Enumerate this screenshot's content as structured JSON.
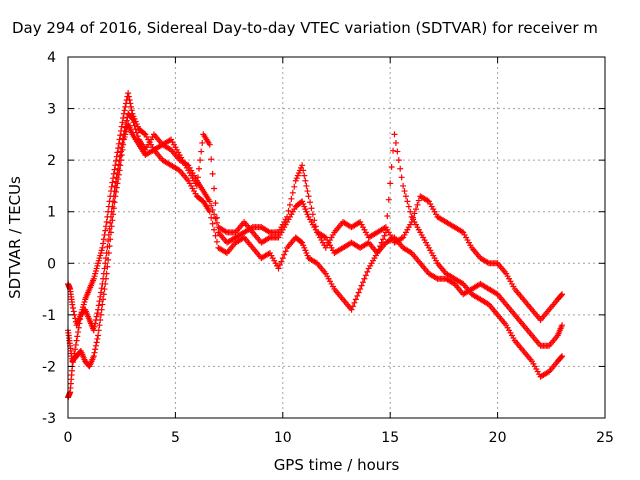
{
  "chart_data": {
    "type": "scatter",
    "title": "Day 294 of 2016, Sidereal Day-to-day VTEC variation (SDTVAR) for receiver m",
    "xlabel": "GPS time / hours",
    "ylabel": "SDTVAR / TECUs",
    "xlim": [
      0,
      25
    ],
    "ylim": [
      -3,
      4
    ],
    "xticks": [
      "0",
      "5",
      "10",
      "15",
      "20",
      "25"
    ],
    "yticks": [
      "-3",
      "-2",
      "-1",
      "0",
      "1",
      "2",
      "3",
      "4"
    ],
    "grid": true,
    "marker": "+",
    "series": [
      {
        "color": "#ff0000",
        "x": [
          0.0,
          0.1,
          0.2,
          0.4,
          0.6,
          0.8,
          1.0,
          1.2,
          1.4,
          1.6,
          1.8,
          2.0,
          2.2,
          2.4,
          2.6,
          2.8,
          3.0,
          3.3,
          3.6,
          4.0,
          4.4,
          4.8,
          5.2,
          5.6,
          6.0,
          6.3,
          6.6,
          7.0,
          7.4,
          7.8,
          8.2,
          8.6,
          9.0,
          9.4,
          9.8,
          10.2,
          10.6,
          10.9,
          11.2,
          11.6,
          12.0,
          12.4,
          12.8,
          13.2,
          13.6,
          14.0,
          14.4,
          14.8,
          15.2,
          15.6,
          16.0,
          16.4,
          16.8,
          17.2,
          17.6,
          18.0,
          18.4,
          18.8,
          19.2,
          19.6,
          20.0,
          20.4,
          20.8,
          21.2,
          21.6,
          22.0,
          22.4,
          22.8,
          23.0
        ],
        "y": [
          -0.4,
          -0.5,
          -0.8,
          -1.2,
          -1.0,
          -0.7,
          -0.5,
          -0.3,
          0.0,
          0.3,
          0.8,
          1.4,
          1.9,
          2.4,
          2.9,
          3.3,
          2.9,
          2.6,
          2.5,
          2.2,
          2.3,
          2.4,
          2.1,
          1.8,
          1.5,
          2.5,
          2.3,
          0.6,
          0.4,
          0.5,
          0.6,
          0.7,
          0.7,
          0.6,
          0.6,
          0.9,
          1.6,
          1.9,
          1.3,
          0.6,
          0.3,
          0.6,
          0.8,
          0.7,
          0.8,
          0.5,
          0.6,
          0.7,
          0.4,
          0.5,
          0.8,
          1.3,
          1.2,
          0.9,
          0.8,
          0.7,
          0.6,
          0.3,
          0.1,
          0.0,
          0.0,
          -0.2,
          -0.5,
          -0.7,
          -0.9,
          -1.1,
          -0.9,
          -0.7,
          -0.6
        ]
      },
      {
        "color": "#ff0000",
        "x": [
          0.0,
          0.1,
          0.2,
          0.4,
          0.6,
          0.8,
          1.0,
          1.2,
          1.4,
          1.6,
          1.8,
          2.0,
          2.2,
          2.4,
          2.6,
          2.8,
          3.0,
          3.3,
          3.6,
          4.0,
          4.4,
          4.8,
          5.2,
          5.6,
          6.0,
          6.3,
          6.6,
          7.0,
          7.4,
          7.8,
          8.2,
          8.6,
          9.0,
          9.4,
          9.8,
          10.2,
          10.6,
          10.9,
          11.2,
          11.6,
          12.0,
          12.4,
          12.8,
          13.2,
          13.6,
          14.0,
          14.4,
          14.8,
          15.2,
          15.6,
          16.0,
          16.4,
          16.8,
          17.2,
          17.6,
          18.0,
          18.4,
          18.8,
          19.2,
          19.6,
          20.0,
          20.4,
          20.8,
          21.2,
          21.6,
          22.0,
          22.4,
          22.8,
          23.0
        ],
        "y": [
          -1.3,
          -1.6,
          -1.9,
          -1.8,
          -1.7,
          -1.9,
          -2.0,
          -1.8,
          -1.4,
          -0.8,
          -0.2,
          0.6,
          1.3,
          1.8,
          2.4,
          2.7,
          2.5,
          2.3,
          2.1,
          2.2,
          2.0,
          1.9,
          1.8,
          1.6,
          1.3,
          1.2,
          1.0,
          0.3,
          0.2,
          0.4,
          0.5,
          0.3,
          0.1,
          0.2,
          -0.1,
          0.3,
          0.5,
          0.4,
          0.1,
          0.0,
          -0.2,
          -0.5,
          -0.7,
          -0.9,
          -0.5,
          -0.1,
          0.2,
          0.4,
          0.5,
          0.3,
          0.2,
          0.0,
          -0.2,
          -0.3,
          -0.3,
          -0.4,
          -0.6,
          -0.5,
          -0.4,
          -0.5,
          -0.6,
          -0.8,
          -1.0,
          -1.2,
          -1.4,
          -1.6,
          -1.6,
          -1.4,
          -1.2
        ]
      },
      {
        "color": "#ff0000",
        "x": [
          0.0,
          0.1,
          0.2,
          0.4,
          0.6,
          0.8,
          1.0,
          1.2,
          1.4,
          1.6,
          1.8,
          2.0,
          2.2,
          2.4,
          2.6,
          2.8,
          3.0,
          3.3,
          3.6,
          4.0,
          4.4,
          4.8,
          5.2,
          5.6,
          6.0,
          6.3,
          6.6,
          7.0,
          7.4,
          7.8,
          8.2,
          8.6,
          9.0,
          9.4,
          9.8,
          10.2,
          10.6,
          10.9,
          11.2,
          11.6,
          12.0,
          12.4,
          12.8,
          13.2,
          13.6,
          14.0,
          14.4,
          14.8,
          15.2,
          15.6,
          16.0,
          16.4,
          16.8,
          17.2,
          17.6,
          18.0,
          18.4,
          18.8,
          19.2,
          19.6,
          20.0,
          20.4,
          20.8,
          21.2,
          21.6,
          22.0,
          22.4,
          22.8,
          23.0
        ],
        "y": [
          -2.6,
          -2.5,
          -2.0,
          -1.5,
          -1.0,
          -0.9,
          -1.1,
          -1.3,
          -0.9,
          -0.4,
          0.2,
          0.9,
          1.5,
          2.0,
          2.5,
          2.9,
          2.8,
          2.4,
          2.2,
          2.5,
          2.3,
          2.2,
          2.0,
          1.9,
          1.6,
          1.4,
          1.2,
          0.7,
          0.6,
          0.6,
          0.8,
          0.6,
          0.4,
          0.5,
          0.5,
          0.8,
          1.1,
          1.2,
          0.9,
          0.6,
          0.5,
          0.2,
          0.3,
          0.4,
          0.3,
          0.4,
          0.2,
          0.6,
          2.5,
          1.5,
          0.9,
          0.6,
          0.3,
          0.0,
          -0.2,
          -0.3,
          -0.4,
          -0.6,
          -0.7,
          -0.8,
          -1.0,
          -1.2,
          -1.5,
          -1.7,
          -1.9,
          -2.2,
          -2.1,
          -1.9,
          -1.8
        ]
      }
    ]
  }
}
